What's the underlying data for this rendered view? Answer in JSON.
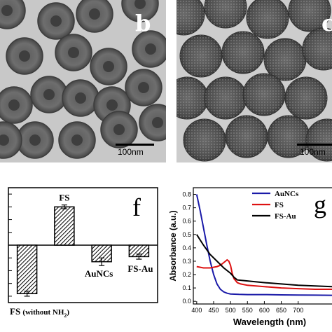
{
  "panels": {
    "b": {
      "letter": "b",
      "scale_label": "100nm"
    },
    "c": {
      "letter": "c",
      "scale_label": "100nm"
    }
  },
  "chart_data": [
    {
      "type": "bar",
      "panel_letter": "f",
      "categories": [
        "FS (without NH2)",
        "FS",
        "AuNCs",
        "FS-Au"
      ],
      "category_labels": [
        {
          "main": "FS",
          "paren": "(without NH",
          "sub": "2",
          "close": ")"
        },
        {
          "main": "FS"
        },
        {
          "main": "AuNCs"
        },
        {
          "main": "FS-Au"
        }
      ],
      "values": [
        -38,
        30,
        -13,
        -9
      ],
      "errors": [
        2,
        1.5,
        3,
        2
      ],
      "pattern": "diagonal-hatch",
      "ylabel": "",
      "ylim": [
        -45,
        45
      ],
      "grid": false
    },
    {
      "type": "line",
      "panel_letter": "g",
      "xlabel": "Wavelength (nm)",
      "ylabel": "Absorbance (a.u.)",
      "xlim": [
        390,
        800
      ],
      "ylim": [
        -0.02,
        0.85
      ],
      "xticks": [
        "400",
        "450",
        "500",
        "550",
        "600",
        "650",
        "700"
      ],
      "yticks": [
        "0.0",
        "0.1",
        "0.2",
        "0.3",
        "0.4",
        "0.5",
        "0.6",
        "0.7",
        "0.8"
      ],
      "legend_position": "top-right",
      "series": [
        {
          "name": "AuNCs",
          "color": "#1a1aa8",
          "x": [
            400,
            410,
            420,
            430,
            440,
            450,
            460,
            470,
            480,
            490,
            500,
            525,
            550,
            600,
            650,
            700,
            750,
            800
          ],
          "y": [
            0.8,
            0.68,
            0.55,
            0.42,
            0.3,
            0.2,
            0.13,
            0.09,
            0.07,
            0.06,
            0.055,
            0.052,
            0.05,
            0.05,
            0.048,
            0.047,
            0.046,
            0.045
          ]
        },
        {
          "name": "FS",
          "color": "#dd1111",
          "x": [
            400,
            420,
            440,
            460,
            470,
            480,
            490,
            495,
            500,
            505,
            510,
            520,
            530,
            550,
            600,
            650,
            700,
            750,
            800
          ],
          "y": [
            0.26,
            0.25,
            0.25,
            0.26,
            0.27,
            0.29,
            0.31,
            0.3,
            0.27,
            0.21,
            0.17,
            0.14,
            0.13,
            0.12,
            0.11,
            0.1,
            0.095,
            0.09,
            0.09
          ]
        },
        {
          "name": "FS-Au",
          "color": "#000000",
          "x": [
            400,
            420,
            440,
            460,
            480,
            500,
            510,
            520,
            540,
            560,
            600,
            650,
            700,
            750,
            800
          ],
          "y": [
            0.5,
            0.42,
            0.35,
            0.3,
            0.25,
            0.21,
            0.18,
            0.16,
            0.155,
            0.15,
            0.14,
            0.13,
            0.12,
            0.115,
            0.11
          ]
        }
      ]
    }
  ]
}
